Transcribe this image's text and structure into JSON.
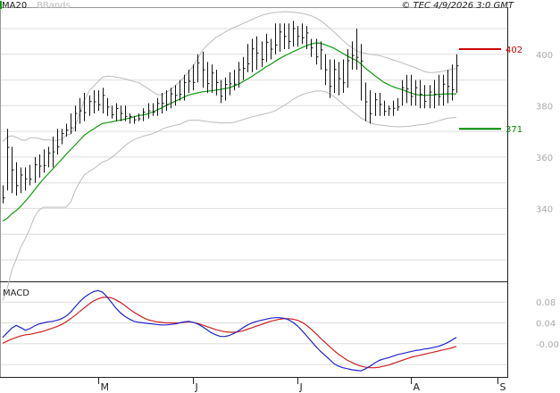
{
  "chart_data": [
    {
      "type": "ohlc",
      "title": "",
      "copyright": "© TEC 4/9/2026 3:0 GMT",
      "legend": [
        {
          "name": "MA20",
          "color": "#119911"
        },
        {
          "name": "BBands",
          "color": "#bbbbbb"
        }
      ],
      "y_ticks": [
        "400",
        "380",
        "360",
        "340"
      ],
      "ylim": [
        312,
        418
      ],
      "x_ticks": [
        "M",
        "J",
        "J",
        "A",
        "S"
      ],
      "grid": true,
      "levels": [
        {
          "label": "402",
          "value": 402,
          "color": "#cc0000"
        },
        {
          "label": "371",
          "value": 371,
          "color": "#008800"
        }
      ],
      "series": [
        {
          "name": "Price (high)",
          "values": [
            349,
            371,
            364,
            358,
            356,
            356,
            357,
            360,
            361,
            363,
            364,
            368,
            371,
            371,
            373,
            377,
            380,
            383,
            385,
            384,
            386,
            386,
            387,
            383,
            380,
            381,
            380,
            380,
            377,
            376,
            377,
            379,
            381,
            381,
            383,
            385,
            386,
            387,
            388,
            390,
            392,
            394,
            396,
            400,
            401,
            397,
            396,
            394,
            390,
            391,
            393,
            394,
            397,
            399,
            404,
            406,
            407,
            405,
            408,
            406,
            412,
            412,
            412,
            412,
            413,
            411,
            412,
            411,
            406,
            406,
            405,
            400,
            398,
            398,
            397,
            398,
            402,
            405,
            410,
            404,
            389,
            386,
            385,
            385,
            382,
            380,
            382,
            383,
            390,
            392,
            392,
            390,
            390,
            388,
            388,
            390,
            392,
            392,
            394,
            396,
            400
          ]
        },
        {
          "name": "Price (low)",
          "values": [
            342,
            347,
            346,
            345,
            346,
            347,
            349,
            350,
            352,
            354,
            356,
            356,
            361,
            365,
            368,
            369,
            370,
            373,
            374,
            376,
            377,
            378,
            377,
            376,
            375,
            374,
            374,
            374,
            373,
            373,
            374,
            374,
            375,
            376,
            376,
            377,
            378,
            379,
            380,
            382,
            382,
            385,
            386,
            389,
            387,
            385,
            385,
            384,
            381,
            382,
            384,
            386,
            387,
            390,
            393,
            393,
            394,
            395,
            397,
            398,
            400,
            401,
            402,
            402,
            403,
            403,
            404,
            402,
            399,
            396,
            394,
            388,
            383,
            385,
            384,
            385,
            387,
            394,
            394,
            382,
            374,
            373,
            376,
            376,
            376,
            376,
            376,
            378,
            380,
            381,
            380,
            380,
            379,
            379,
            379,
            379,
            380,
            380,
            381,
            382,
            385
          ]
        },
        {
          "name": "MA20",
          "values": [
            335.1,
            336.2,
            337.9,
            339.2,
            340.9,
            342.8,
            344.9,
            347.2,
            349.4,
            351.5,
            353.4,
            355.3,
            357.2,
            359.1,
            361.1,
            362.9,
            364.8,
            366.7,
            368.5,
            369.8,
            370.9,
            372.1,
            373.1,
            373.4,
            373.7,
            374.1,
            374.4,
            374.8,
            375.2,
            375.7,
            376.2,
            376.4,
            376.8,
            377.5,
            378.3,
            379.1,
            380.1,
            380.9,
            381.7,
            382.5,
            383.4,
            384.2,
            384.6,
            385.0,
            385.4,
            385.6,
            385.8,
            386.1,
            386.3,
            386.7,
            387.0,
            387.7,
            388.4,
            389.4,
            390.4,
            391.5,
            392.7,
            393.8,
            395.1,
            396.0,
            397.2,
            398.3,
            399.3,
            400.1,
            401.0,
            401.8,
            402.6,
            403.4,
            404.0,
            404.4,
            404.3,
            403.8,
            403.1,
            402.4,
            401.4,
            400.3,
            399.3,
            398.4,
            397.6,
            396.2,
            394.5,
            393.1,
            391.7,
            390.4,
            389.1,
            388.2,
            387.4,
            386.8,
            386.3,
            385.6,
            384.9,
            384.4,
            384.1,
            384.0,
            384.1,
            384.2,
            384.4,
            384.5,
            384.6,
            384.6,
            384.6
          ]
        },
        {
          "name": "BBands (upper)",
          "values": [
            366.0,
            367.8,
            368.3,
            367.7,
            366.8,
            366.5,
            367.5,
            367.5,
            367.3,
            366.7,
            366.7,
            366.5,
            366.5,
            367.0,
            368.5,
            369.0,
            372.0,
            377.3,
            382.0,
            385.6,
            387.5,
            389.4,
            391.1,
            391.5,
            391.4,
            391.1,
            390.8,
            390.4,
            389.9,
            389.4,
            388.9,
            387.8,
            386.7,
            385.5,
            384.4,
            384.2,
            385.1,
            386.2,
            387.7,
            389.3,
            391.1,
            393.2,
            395.4,
            398.3,
            401.4,
            403.5,
            405.0,
            406.6,
            407.5,
            408.6,
            409.6,
            410.5,
            411.2,
            412.0,
            412.8,
            413.6,
            414.4,
            415.1,
            415.6,
            416.0,
            416.3,
            416.4,
            416.6,
            416.5,
            416.4,
            416.2,
            415.9,
            415.5,
            415.0,
            414.2,
            413.2,
            411.8,
            410.3,
            408.7,
            407.1,
            405.4,
            403.8,
            402.6,
            401.4,
            400.7,
            400.4,
            400.0,
            399.8,
            399.5,
            399.0,
            398.5,
            397.8,
            397.3,
            396.7,
            396.0,
            395.4,
            394.7,
            394.0,
            393.3,
            392.9,
            392.9,
            393.1,
            393.4,
            393.8,
            394.2,
            394.5
          ]
        },
        {
          "name": "BBands (lower)",
          "values": [
            304.2,
            308.9,
            315.8,
            320.3,
            325.0,
            328.3,
            332.2,
            336.7,
            339.3,
            340.5,
            340.5,
            340.5,
            340.5,
            340.5,
            340.5,
            342.5,
            347.0,
            350.4,
            353.0,
            354.4,
            355.4,
            356.8,
            358.1,
            358.7,
            359.8,
            361.3,
            362.9,
            364.5,
            365.8,
            366.8,
            367.5,
            368.2,
            368.6,
            369.1,
            369.8,
            370.7,
            371.5,
            371.9,
            372.4,
            372.7,
            373.5,
            374.3,
            374.4,
            374.4,
            374.1,
            373.9,
            373.6,
            373.5,
            373.3,
            373.3,
            373.3,
            373.5,
            374.1,
            374.6,
            375.1,
            375.7,
            376.1,
            376.5,
            376.9,
            377.4,
            378.0,
            379.0,
            380.1,
            381.2,
            382.4,
            383.5,
            384.3,
            384.9,
            385.3,
            385.7,
            385.7,
            385.5,
            384.7,
            383.6,
            382.2,
            380.7,
            379.2,
            377.9,
            376.5,
            375.2,
            374.2,
            373.4,
            372.8,
            372.5,
            372.3,
            372.1,
            371.9,
            371.8,
            371.8,
            371.9,
            372.1,
            372.4,
            372.6,
            372.7,
            373.1,
            373.6,
            374.1,
            374.6,
            375.1,
            375.3,
            375.4
          ]
        }
      ]
    },
    {
      "type": "line",
      "title": "MACD",
      "y_ticks": [
        "0.08",
        "0.04",
        "-0.00"
      ],
      "ylim": [
        -0.062,
        0.118
      ],
      "series": [
        {
          "name": "MACD",
          "color": "#2222cc",
          "values": [
            0.012,
            0.021,
            0.03,
            0.035,
            0.031,
            0.026,
            0.029,
            0.034,
            0.038,
            0.04,
            0.042,
            0.043,
            0.045,
            0.048,
            0.053,
            0.061,
            0.071,
            0.081,
            0.089,
            0.095,
            0.1,
            0.102,
            0.099,
            0.09,
            0.079,
            0.068,
            0.059,
            0.052,
            0.047,
            0.043,
            0.041,
            0.04,
            0.039,
            0.038,
            0.037,
            0.036,
            0.036,
            0.037,
            0.038,
            0.04,
            0.042,
            0.043,
            0.041,
            0.038,
            0.033,
            0.027,
            0.021,
            0.017,
            0.014,
            0.014,
            0.016,
            0.02,
            0.025,
            0.031,
            0.036,
            0.04,
            0.043,
            0.045,
            0.047,
            0.049,
            0.05,
            0.05,
            0.049,
            0.046,
            0.041,
            0.034,
            0.025,
            0.015,
            0.005,
            -0.005,
            -0.014,
            -0.022,
            -0.03,
            -0.038,
            -0.043,
            -0.046,
            -0.048,
            -0.05,
            -0.051,
            -0.052,
            -0.048,
            -0.043,
            -0.037,
            -0.032,
            -0.029,
            -0.027,
            -0.024,
            -0.021,
            -0.019,
            -0.017,
            -0.015,
            -0.013,
            -0.012,
            -0.01,
            -0.009,
            -0.007,
            -0.005,
            -0.002,
            0.002,
            0.007,
            0.012
          ]
        },
        {
          "name": "Signal",
          "color": "#cc2222",
          "values": [
            0.001,
            0.005,
            0.009,
            0.012,
            0.015,
            0.017,
            0.018,
            0.02,
            0.022,
            0.024,
            0.027,
            0.03,
            0.033,
            0.037,
            0.042,
            0.048,
            0.055,
            0.062,
            0.069,
            0.076,
            0.082,
            0.086,
            0.089,
            0.089,
            0.088,
            0.084,
            0.079,
            0.073,
            0.066,
            0.06,
            0.055,
            0.05,
            0.046,
            0.044,
            0.042,
            0.041,
            0.04,
            0.04,
            0.04,
            0.04,
            0.041,
            0.042,
            0.041,
            0.039,
            0.036,
            0.033,
            0.03,
            0.027,
            0.025,
            0.023,
            0.022,
            0.022,
            0.023,
            0.025,
            0.028,
            0.031,
            0.034,
            0.037,
            0.04,
            0.043,
            0.045,
            0.047,
            0.048,
            0.048,
            0.047,
            0.045,
            0.041,
            0.035,
            0.028,
            0.02,
            0.011,
            0.003,
            -0.005,
            -0.013,
            -0.02,
            -0.026,
            -0.032,
            -0.036,
            -0.04,
            -0.043,
            -0.045,
            -0.046,
            -0.046,
            -0.045,
            -0.043,
            -0.041,
            -0.038,
            -0.035,
            -0.032,
            -0.029,
            -0.026,
            -0.024,
            -0.022,
            -0.02,
            -0.018,
            -0.016,
            -0.014,
            -0.012,
            -0.01,
            -0.008,
            -0.005
          ]
        }
      ]
    }
  ]
}
